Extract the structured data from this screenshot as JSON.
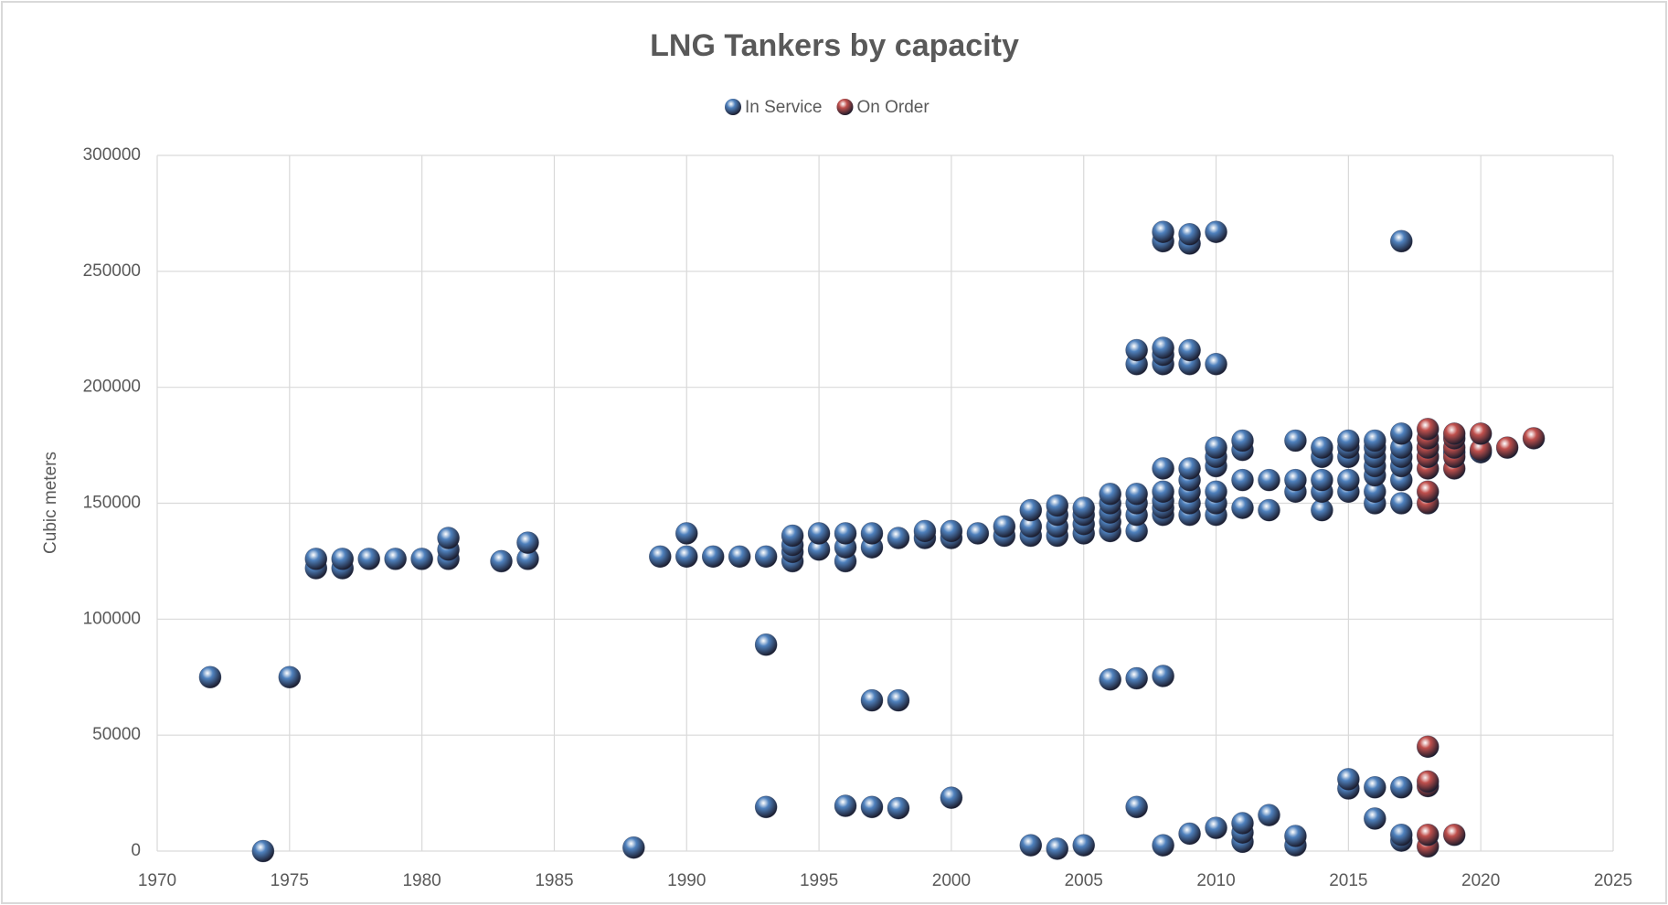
{
  "chart_data": {
    "type": "scatter",
    "title": "LNG Tankers by capacity",
    "ylabel": "Cubic meters",
    "xlim": [
      1970,
      2025
    ],
    "xticks": [
      1970,
      1975,
      1980,
      1985,
      1990,
      1995,
      2000,
      2005,
      2010,
      2015,
      2020,
      2025
    ],
    "ylim": [
      0,
      300000
    ],
    "yticks": [
      0,
      50000,
      100000,
      150000,
      200000,
      250000,
      300000
    ],
    "grid": true,
    "legend": "top",
    "series": [
      {
        "name": "In Service",
        "color": "#4f81bd",
        "x": [
          1972,
          1974,
          1975,
          1976,
          1976,
          1977,
          1977,
          1978,
          1979,
          1980,
          1981,
          1981,
          1981,
          1983,
          1984,
          1984,
          1988,
          1989,
          1990,
          1990,
          1991,
          1992,
          1993,
          1993,
          1993,
          1994,
          1994,
          1994,
          1994,
          1995,
          1995,
          1996,
          1996,
          1996,
          1996,
          1997,
          1997,
          1997,
          1997,
          1998,
          1998,
          1998,
          1999,
          1999,
          2000,
          2000,
          2000,
          2001,
          2002,
          2002,
          2003,
          2003,
          2003,
          2003,
          2004,
          2004,
          2004,
          2004,
          2004,
          2005,
          2005,
          2005,
          2005,
          2005,
          2006,
          2006,
          2006,
          2006,
          2006,
          2006,
          2007,
          2007,
          2007,
          2007,
          2007,
          2007,
          2007,
          2007,
          2008,
          2008,
          2008,
          2008,
          2008,
          2008,
          2008,
          2008,
          2008,
          2008,
          2008,
          2008,
          2009,
          2009,
          2009,
          2009,
          2009,
          2009,
          2009,
          2009,
          2009,
          2009,
          2010,
          2010,
          2010,
          2010,
          2010,
          2010,
          2010,
          2010,
          2010,
          2011,
          2011,
          2011,
          2011,
          2011,
          2011,
          2011,
          2012,
          2012,
          2012,
          2013,
          2013,
          2013,
          2013,
          2013,
          2014,
          2014,
          2014,
          2014,
          2014,
          2015,
          2015,
          2015,
          2015,
          2015,
          2015,
          2015,
          2016,
          2016,
          2016,
          2016,
          2016,
          2016,
          2016,
          2016,
          2016,
          2017,
          2017,
          2017,
          2017,
          2017,
          2017,
          2017,
          2017,
          2017,
          2017,
          2018,
          2018,
          2019,
          2020
        ],
        "values": [
          75000,
          0,
          75000,
          122000,
          126000,
          122000,
          126000,
          126000,
          126000,
          126000,
          126000,
          130000,
          135000,
          125000,
          126000,
          133000,
          1500,
          127000,
          127000,
          137000,
          127000,
          127000,
          127000,
          89000,
          19000,
          125000,
          129000,
          132000,
          136000,
          130000,
          137000,
          125000,
          131000,
          137000,
          19500,
          131000,
          137000,
          65000,
          19000,
          135000,
          65000,
          18500,
          135000,
          138000,
          135000,
          138000,
          23000,
          137000,
          136000,
          140000,
          136000,
          140000,
          147000,
          2500,
          136000,
          140000,
          145000,
          149000,
          1000,
          137000,
          141000,
          145000,
          148000,
          2500,
          138000,
          142000,
          146000,
          150000,
          154000,
          74000,
          138000,
          145000,
          150000,
          154000,
          210000,
          216000,
          74500,
          19000,
          145000,
          148000,
          151000,
          155000,
          165000,
          210000,
          214000,
          217000,
          263000,
          267000,
          75500,
          2500,
          145000,
          150000,
          155000,
          160000,
          165000,
          210000,
          216000,
          262000,
          266000,
          7500,
          145000,
          150000,
          155000,
          166000,
          170000,
          174000,
          210000,
          267000,
          10000,
          148000,
          160000,
          173000,
          177000,
          4000,
          8000,
          12000,
          147000,
          160000,
          15500,
          155000,
          160000,
          177000,
          2500,
          6500,
          147000,
          155000,
          160000,
          170000,
          174000,
          155000,
          160000,
          170000,
          174000,
          177000,
          27000,
          31000,
          150000,
          155000,
          162000,
          166000,
          170000,
          174000,
          177000,
          27500,
          14000,
          150000,
          160000,
          166000,
          170000,
          174000,
          180000,
          263000,
          27500,
          4500,
          7000,
          170000,
          174000,
          172000,
          172000
        ]
      },
      {
        "name": "On Order",
        "color": "#c0504d",
        "x": [
          2018,
          2018,
          2018,
          2018,
          2018,
          2018,
          2018,
          2018,
          2018,
          2018,
          2018,
          2018,
          2019,
          2019,
          2019,
          2019,
          2019,
          2019,
          2020,
          2020,
          2021,
          2022
        ],
        "values": [
          150000,
          155000,
          165000,
          170000,
          174000,
          178000,
          182000,
          45000,
          28000,
          30000,
          2000,
          7000,
          165000,
          170000,
          174000,
          178000,
          180000,
          7000,
          173000,
          180000,
          174000,
          178000
        ]
      }
    ]
  }
}
